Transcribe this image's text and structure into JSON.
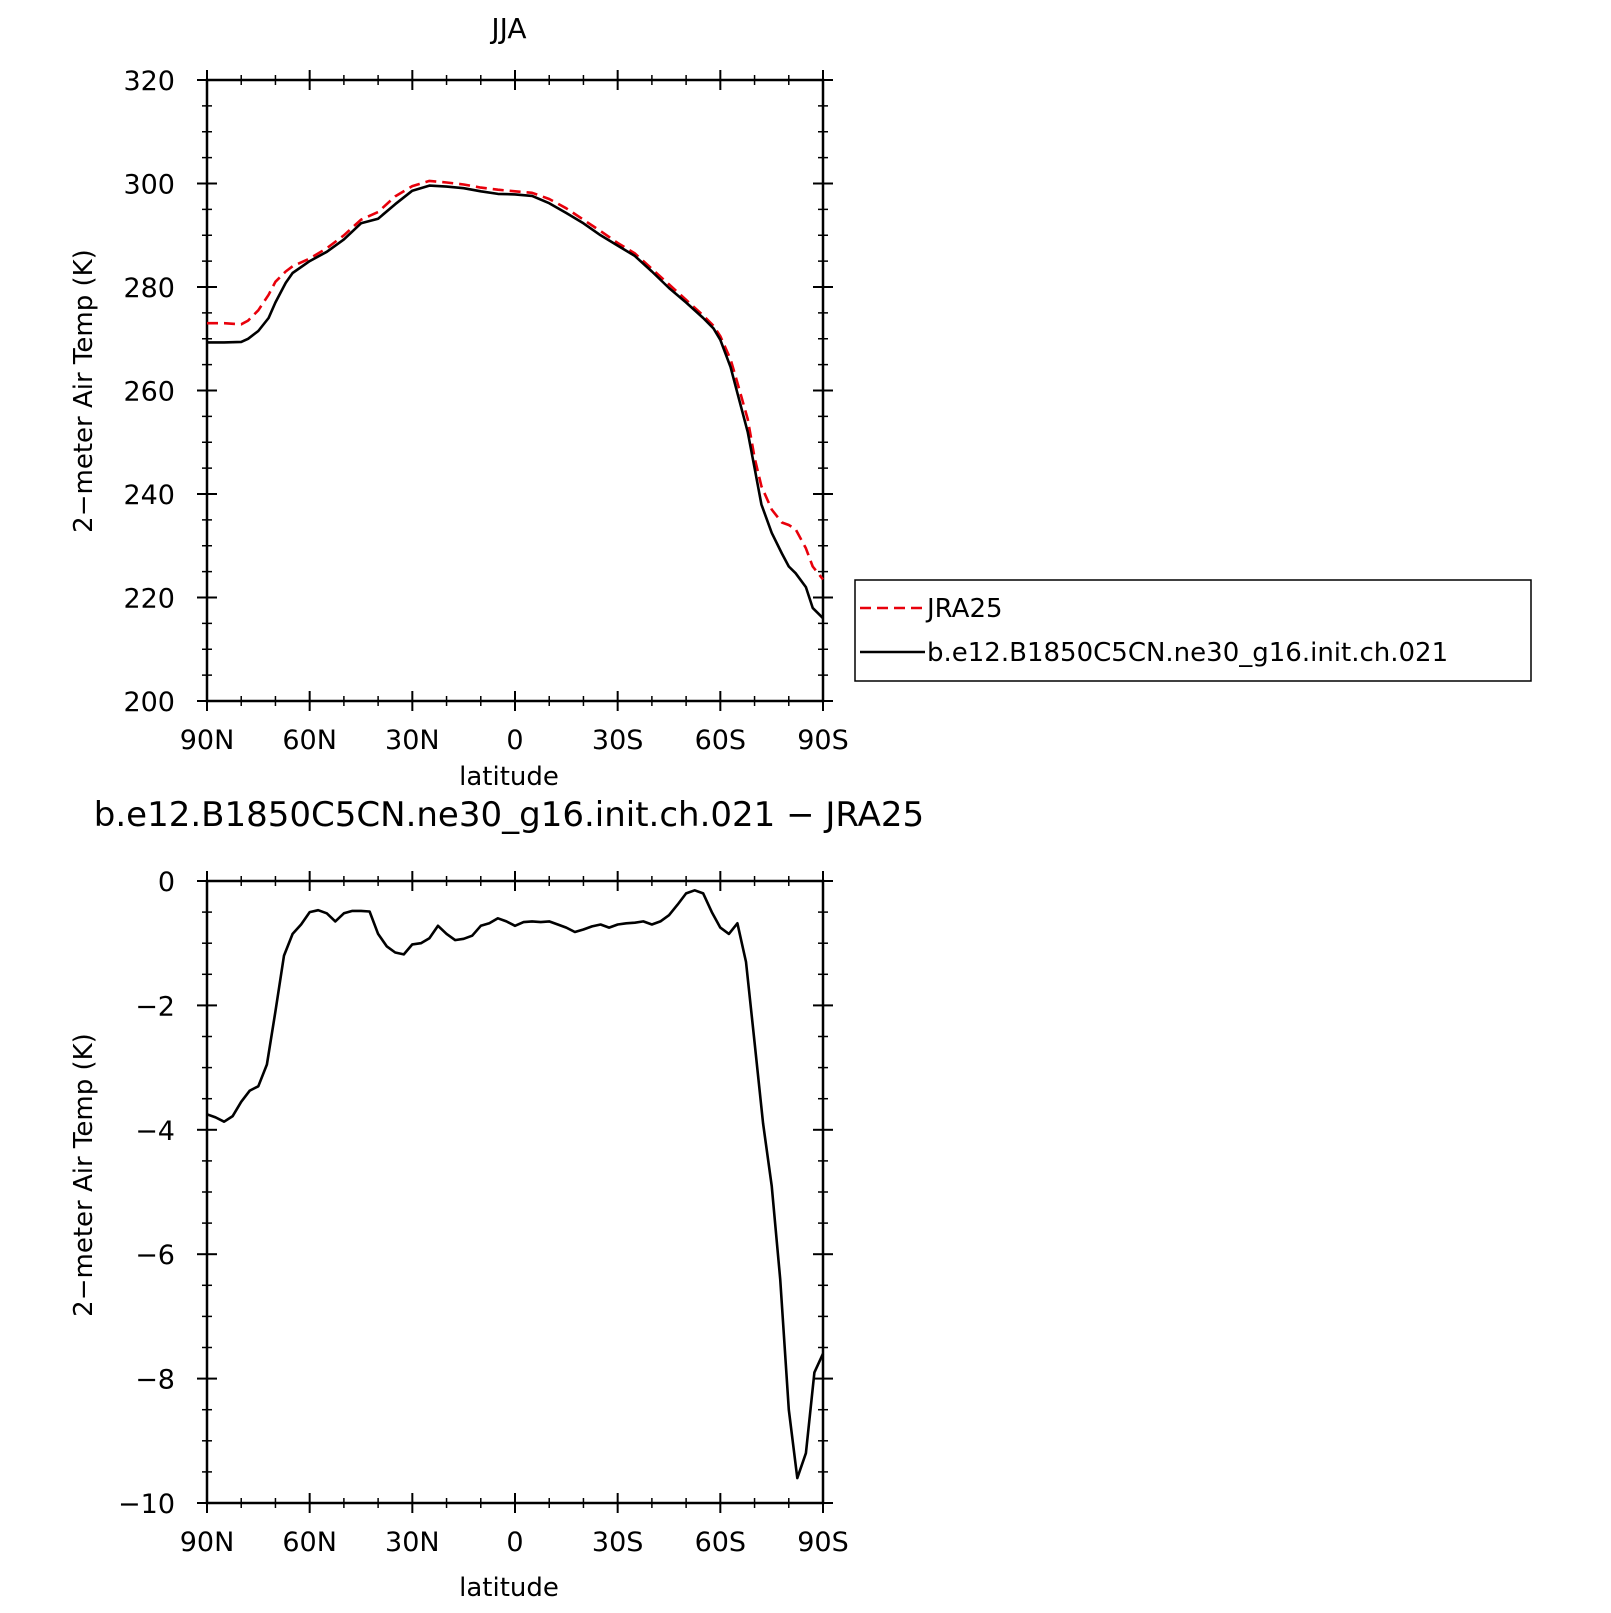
{
  "chart_data": [
    {
      "type": "line",
      "title": "JJA",
      "xlabel": "latitude",
      "ylabel": "2−meter Air Temp (K)",
      "x_ticks": [
        "90N",
        "60N",
        "30N",
        "0",
        "30S",
        "60S",
        "90S"
      ],
      "y_ticks": [
        "320",
        "300",
        "280",
        "260",
        "240",
        "220",
        "200"
      ],
      "xlim": [
        90,
        -90
      ],
      "ylim": [
        200,
        320
      ],
      "legend_position": "right",
      "series": [
        {
          "name": "JRA25",
          "color": "#e8000b",
          "style": "dashed",
          "x": [
            90,
            85,
            80,
            78,
            75,
            72,
            70,
            67,
            65,
            60,
            55,
            50,
            45,
            40,
            35,
            30,
            25,
            20,
            15,
            10,
            5,
            0,
            -5,
            -10,
            -15,
            -20,
            -25,
            -30,
            -35,
            -40,
            -45,
            -50,
            -55,
            -58,
            -60,
            -63,
            -65,
            -68,
            -70,
            -72,
            -75,
            -78,
            -80,
            -82,
            -85,
            -87,
            -90
          ],
          "y": [
            273,
            273,
            272.8,
            273.5,
            275.5,
            278.5,
            281,
            283,
            284,
            285.5,
            287.5,
            290,
            293,
            294.5,
            297.5,
            299.5,
            300.5,
            300.2,
            299.8,
            299.2,
            298.8,
            298.5,
            298.2,
            297,
            295.2,
            293,
            290.8,
            288.5,
            286.5,
            283.5,
            280.5,
            277.5,
            274.5,
            272.5,
            270.5,
            266,
            261.5,
            254.5,
            247,
            241.5,
            237,
            234.5,
            234,
            233.2,
            229.5,
            226,
            223.5
          ]
        },
        {
          "name": "b.e12.B1850C5CN.ne30_g16.init.ch.021",
          "color": "#000000",
          "style": "solid",
          "x": [
            90,
            85,
            80,
            78,
            75,
            72,
            70,
            67,
            65,
            60,
            55,
            50,
            45,
            40,
            35,
            30,
            25,
            20,
            15,
            10,
            5,
            0,
            -5,
            -10,
            -15,
            -20,
            -25,
            -30,
            -35,
            -40,
            -45,
            -50,
            -55,
            -58,
            -60,
            -63,
            -65,
            -68,
            -70,
            -72,
            -75,
            -78,
            -80,
            -82,
            -85,
            -87,
            -90
          ],
          "y": [
            269.3,
            269.3,
            269.4,
            270,
            271.5,
            274,
            277,
            280.8,
            282.7,
            285,
            286.8,
            289.2,
            292.3,
            293.2,
            296,
            298.6,
            299.6,
            299.4,
            299.1,
            298.5,
            298,
            297.9,
            297.6,
            296.2,
            294.3,
            292.3,
            290,
            288,
            286,
            283,
            279.8,
            277,
            274,
            272,
            269.8,
            264.5,
            259.5,
            252,
            245,
            238,
            232.5,
            228.5,
            226,
            224.7,
            222,
            218,
            216
          ]
        }
      ]
    },
    {
      "type": "line",
      "title": "b.e12.B1850C5CN.ne30_g16.init.ch.021 − JRA25",
      "xlabel": "latitude",
      "ylabel": "2−meter Air Temp (K)",
      "x_ticks": [
        "90N",
        "60N",
        "30N",
        "0",
        "30S",
        "60S",
        "90S"
      ],
      "y_ticks": [
        "0",
        "−2",
        "−4",
        "−6",
        "−8",
        "−10"
      ],
      "xlim": [
        90,
        -90
      ],
      "ylim": [
        -10,
        0
      ],
      "series": [
        {
          "color": "#000000",
          "style": "solid",
          "x": [
            90,
            87.5,
            85,
            82.5,
            80,
            77.5,
            75,
            72.5,
            70,
            67.5,
            65,
            62.5,
            60,
            57.5,
            55,
            52.5,
            50,
            47.5,
            45,
            42.5,
            40,
            37.5,
            35,
            32.5,
            30,
            27.5,
            25,
            22.5,
            20,
            17.5,
            15,
            12.5,
            10,
            7.5,
            5,
            2.5,
            0,
            -2.5,
            -5,
            -7.5,
            -10,
            -12.5,
            -15,
            -17.5,
            -20,
            -22.5,
            -25,
            -27.5,
            -30,
            -32.5,
            -35,
            -37.5,
            -40,
            -42.5,
            -45,
            -47.5,
            -50,
            -52.5,
            -55,
            -57.5,
            -60,
            -62.5,
            -65,
            -67.5,
            -70,
            -72.5,
            -75,
            -77.5,
            -80,
            -82.5,
            -85,
            -87.5,
            -90
          ],
          "y": [
            -3.75,
            -3.8,
            -3.87,
            -3.78,
            -3.55,
            -3.37,
            -3.3,
            -2.95,
            -2.1,
            -1.2,
            -0.85,
            -0.7,
            -0.5,
            -0.47,
            -0.52,
            -0.65,
            -0.52,
            -0.48,
            -0.48,
            -0.49,
            -0.85,
            -1.05,
            -1.15,
            -1.18,
            -1.02,
            -1.0,
            -0.92,
            -0.72,
            -0.85,
            -0.95,
            -0.93,
            -0.88,
            -0.72,
            -0.68,
            -0.6,
            -0.65,
            -0.72,
            -0.66,
            -0.65,
            -0.66,
            -0.65,
            -0.7,
            -0.75,
            -0.82,
            -0.78,
            -0.73,
            -0.7,
            -0.75,
            -0.7,
            -0.68,
            -0.67,
            -0.65,
            -0.7,
            -0.65,
            -0.55,
            -0.38,
            -0.2,
            -0.15,
            -0.2,
            -0.5,
            -0.75,
            -0.85,
            -0.68,
            -1.3,
            -2.6,
            -3.9,
            -4.9,
            -6.4,
            -8.5,
            -9.6,
            -9.2,
            -7.9,
            -7.6
          ]
        }
      ]
    }
  ]
}
